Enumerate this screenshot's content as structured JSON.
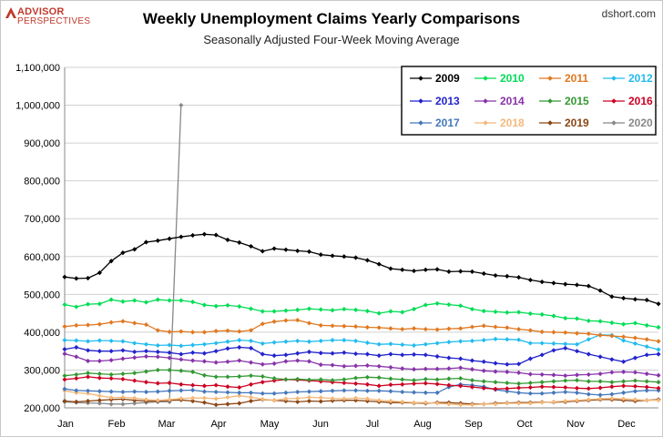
{
  "header": {
    "logo_line1": "ADVISOR",
    "logo_line2": "PERSPECTIVES",
    "site": "dshort.com"
  },
  "chart_data": {
    "type": "line",
    "title": "Weekly Unemployment Claims Yearly Comparisons",
    "subtitle": "Seasonally Adjusted Four-Week Moving Average",
    "ylim": [
      200000,
      1100000
    ],
    "yticks": [
      200000,
      300000,
      400000,
      500000,
      600000,
      700000,
      800000,
      900000,
      1000000,
      1100000
    ],
    "ytick_labels": [
      "200,000",
      "300,000",
      "400,000",
      "500,000",
      "600,000",
      "700,000",
      "800,000",
      "900,000",
      "1,000,000",
      "1,100,000"
    ],
    "month_labels": [
      "Jan",
      "Feb",
      "Mar",
      "Apr",
      "May",
      "Jun",
      "Jul",
      "Aug",
      "Sep",
      "Oct",
      "Nov",
      "Dec"
    ],
    "weeks": 52,
    "grid": true,
    "legend_position": "top-right",
    "series": [
      {
        "name": "2009",
        "color": "#000000",
        "values": [
          546000,
          542000,
          543000,
          557000,
          588000,
          610000,
          619000,
          638000,
          642000,
          647000,
          652000,
          656000,
          659000,
          657000,
          644000,
          637000,
          627000,
          614000,
          621000,
          618000,
          615000,
          613000,
          605000,
          602000,
          600000,
          597000,
          590000,
          580000,
          568000,
          565000,
          562000,
          565000,
          566000,
          560000,
          561000,
          560000,
          555000,
          550000,
          548000,
          545000,
          538000,
          533000,
          530000,
          527000,
          525000,
          522000,
          510000,
          494000,
          490000,
          487000,
          485000,
          475000
        ]
      },
      {
        "name": "2010",
        "color": "#00dd55",
        "values": [
          473000,
          467000,
          474000,
          475000,
          486000,
          481000,
          484000,
          479000,
          486000,
          484000,
          484000,
          480000,
          472000,
          469000,
          471000,
          468000,
          462000,
          455000,
          455000,
          457000,
          459000,
          462000,
          460000,
          458000,
          461000,
          459000,
          456000,
          450000,
          455000,
          453000,
          461000,
          472000,
          476000,
          473000,
          470000,
          461000,
          456000,
          454000,
          452000,
          453000,
          449000,
          447000,
          443000,
          437000,
          436000,
          430000,
          429000,
          425000,
          421000,
          424000,
          418000,
          413000
        ]
      },
      {
        "name": "2011",
        "color": "#e07820",
        "values": [
          415000,
          418000,
          419000,
          421000,
          426000,
          429000,
          424000,
          420000,
          405000,
          401000,
          402000,
          400000,
          400000,
          403000,
          404000,
          402000,
          405000,
          422000,
          428000,
          431000,
          432000,
          424000,
          418000,
          417000,
          416000,
          415000,
          413000,
          412000,
          410000,
          408000,
          410000,
          408000,
          407000,
          409000,
          410000,
          414000,
          417000,
          414000,
          412000,
          408000,
          405000,
          401000,
          400000,
          399000,
          397000,
          396000,
          392000,
          390000,
          388000,
          385000,
          381000,
          376000
        ]
      },
      {
        "name": "2012",
        "color": "#22bbee",
        "values": [
          379000,
          378000,
          376000,
          378000,
          377000,
          376000,
          371000,
          368000,
          365000,
          366000,
          364000,
          366000,
          368000,
          371000,
          375000,
          379000,
          377000,
          370000,
          373000,
          375000,
          377000,
          375000,
          377000,
          379000,
          379000,
          377000,
          372000,
          368000,
          369000,
          367000,
          365000,
          368000,
          371000,
          374000,
          376000,
          377000,
          379000,
          382000,
          381000,
          380000,
          371000,
          371000,
          370000,
          369000,
          368000,
          381000,
          393000,
          392000,
          378000,
          370000,
          362000,
          354000
        ]
      },
      {
        "name": "2013",
        "color": "#2222cc",
        "values": [
          355000,
          360000,
          352000,
          350000,
          350000,
          352000,
          348000,
          350000,
          348000,
          346000,
          342000,
          346000,
          344000,
          350000,
          357000,
          360000,
          358000,
          342000,
          338000,
          340000,
          344000,
          348000,
          345000,
          344000,
          346000,
          343000,
          342000,
          338000,
          342000,
          340000,
          341000,
          340000,
          336000,
          332000,
          330000,
          325000,
          322000,
          318000,
          315000,
          316000,
          330000,
          340000,
          352000,
          358000,
          350000,
          342000,
          335000,
          328000,
          322000,
          332000,
          340000,
          342000
        ]
      },
      {
        "name": "2014",
        "color": "#8833aa",
        "values": [
          343000,
          335000,
          324000,
          324000,
          326000,
          330000,
          333000,
          336000,
          335000,
          332000,
          328000,
          325000,
          323000,
          320000,
          322000,
          325000,
          320000,
          315000,
          317000,
          323000,
          325000,
          323000,
          314000,
          313000,
          310000,
          311000,
          312000,
          310000,
          307000,
          304000,
          302000,
          303000,
          303000,
          304000,
          306000,
          302000,
          298000,
          296000,
          295000,
          293000,
          289000,
          288000,
          287000,
          285000,
          287000,
          288000,
          290000,
          294000,
          295000,
          294000,
          290000,
          286000
        ]
      },
      {
        "name": "2015",
        "color": "#339933",
        "values": [
          285000,
          288000,
          292000,
          290000,
          288000,
          290000,
          292000,
          296000,
          300000,
          300000,
          298000,
          295000,
          286000,
          282000,
          282000,
          283000,
          285000,
          283000,
          278000,
          275000,
          276000,
          274000,
          275000,
          273000,
          275000,
          279000,
          281000,
          280000,
          277000,
          275000,
          273000,
          276000,
          275000,
          277000,
          278000,
          273000,
          270000,
          268000,
          266000,
          264000,
          266000,
          268000,
          270000,
          272000,
          273000,
          270000,
          270000,
          268000,
          270000,
          272000,
          270000,
          268000
        ]
      },
      {
        "name": "2016",
        "color": "#cc0022",
        "values": [
          275000,
          278000,
          282000,
          279000,
          278000,
          276000,
          272000,
          268000,
          265000,
          266000,
          262000,
          260000,
          258000,
          260000,
          256000,
          254000,
          262000,
          268000,
          272000,
          275000,
          274000,
          272000,
          270000,
          268000,
          266000,
          264000,
          262000,
          258000,
          261000,
          262000,
          264000,
          265000,
          263000,
          260000,
          258000,
          255000,
          252000,
          250000,
          251000,
          253000,
          254000,
          256000,
          255000,
          254000,
          252000,
          251000,
          253000,
          256000,
          258000,
          257000,
          255000,
          252000
        ]
      },
      {
        "name": "2017",
        "color": "#4477bb",
        "values": [
          250000,
          246000,
          245000,
          244000,
          243000,
          242000,
          243000,
          242000,
          243000,
          245000,
          246000,
          247000,
          243000,
          242000,
          241000,
          240000,
          240000,
          238000,
          238000,
          240000,
          242000,
          243000,
          244000,
          245000,
          246000,
          246000,
          245000,
          245000,
          244000,
          242000,
          241000,
          240000,
          240000,
          255000,
          262000,
          260000,
          256000,
          248000,
          244000,
          240000,
          238000,
          238000,
          240000,
          242000,
          240000,
          236000,
          234000,
          236000,
          240000,
          244000,
          246000,
          246000
        ]
      },
      {
        "name": "2018",
        "color": "#f4b87a",
        "values": [
          245000,
          240000,
          238000,
          232000,
          227000,
          228000,
          226000,
          222000,
          220000,
          222000,
          225000,
          226000,
          226000,
          224000,
          228000,
          232000,
          228000,
          223000,
          220000,
          224000,
          225000,
          228000,
          227000,
          225000,
          224000,
          226000,
          224000,
          220000,
          218000,
          216000,
          214000,
          214000,
          212000,
          210000,
          208000,
          208000,
          210000,
          210000,
          212000,
          212000,
          212000,
          214000,
          216000,
          218000,
          220000,
          222000,
          224000,
          225000,
          224000,
          222000,
          220000,
          220000
        ]
      },
      {
        "name": "2019",
        "color": "#8b4513",
        "values": [
          218000,
          216000,
          218000,
          220000,
          222000,
          223000,
          220000,
          218000,
          218000,
          220000,
          221000,
          218000,
          214000,
          208000,
          210000,
          212000,
          218000,
          222000,
          220000,
          218000,
          216000,
          218000,
          217000,
          219000,
          220000,
          220000,
          218000,
          216000,
          214000,
          214000,
          213000,
          212000,
          214000,
          214000,
          212000,
          210000,
          210000,
          212000,
          213000,
          214000,
          214000,
          215000,
          215000,
          216000,
          218000,
          220000,
          222000,
          222000,
          220000,
          218000,
          220000,
          222000
        ]
      },
      {
        "name": "2020",
        "color": "#888888",
        "values": [
          216000,
          214000,
          213000,
          212000,
          210000,
          210000,
          212000,
          214000,
          216000,
          216000,
          1000000
        ]
      }
    ]
  }
}
